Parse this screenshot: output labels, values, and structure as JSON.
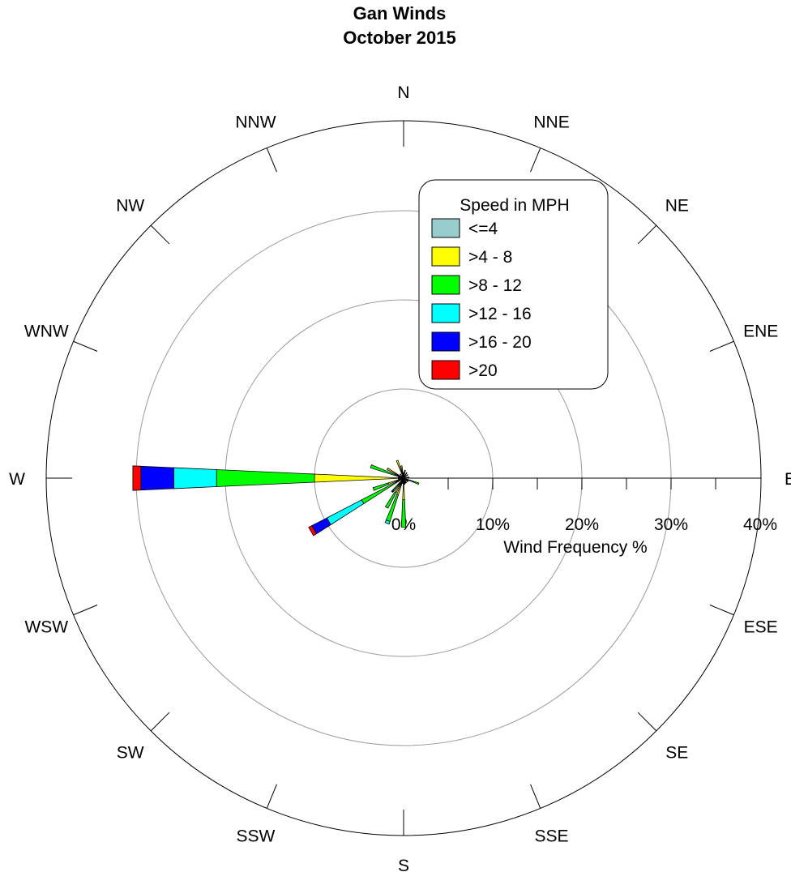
{
  "chart_data": {
    "type": "windrose",
    "title": "Gan Winds",
    "subtitle": "October 2015",
    "radial_axis_label": "Wind Frequency %",
    "radial_ticks": [
      "0%",
      "10%",
      "20%",
      "30%",
      "40%"
    ],
    "radial_range": [
      0,
      40
    ],
    "grid": true,
    "directions": [
      "N",
      "NNE",
      "NE",
      "ENE",
      "E",
      "ESE",
      "SE",
      "SSE",
      "S",
      "SSW",
      "SW",
      "WSW",
      "W",
      "WNW",
      "NW",
      "NNW"
    ],
    "legend": {
      "title": "Speed in MPH",
      "position": "upper-right",
      "bins": [
        {
          "label": "<=4",
          "color": "#99cccc"
        },
        {
          "label": ">4 - 8",
          "color": "#ffff00"
        },
        {
          "label": ">8 - 12",
          "color": "#00ff00"
        },
        {
          "label": ">12 - 16",
          "color": "#00ffff"
        },
        {
          "label": ">16 - 20",
          "color": "#0000ff"
        },
        {
          "label": ">20",
          "color": "#ff0000"
        }
      ]
    },
    "series": [
      {
        "direction_deg": 0,
        "values": [
          0.0,
          0.6,
          0.0,
          0.0,
          0.0,
          0.0
        ]
      },
      {
        "direction_deg": 10,
        "values": [
          0.0,
          0.9,
          0.0,
          0.0,
          0.0,
          0.0
        ]
      },
      {
        "direction_deg": 30,
        "values": [
          0.0,
          0.7,
          0.0,
          0.0,
          0.0,
          0.0
        ]
      },
      {
        "direction_deg": 50,
        "values": [
          0.0,
          0.6,
          0.0,
          0.0,
          0.0,
          0.0
        ]
      },
      {
        "direction_deg": 80,
        "values": [
          0.0,
          0.6,
          0.0,
          0.0,
          0.0,
          0.0
        ]
      },
      {
        "direction_deg": 110,
        "values": [
          0.0,
          1.1,
          0.7,
          0.0,
          0.0,
          0.0
        ]
      },
      {
        "direction_deg": 120,
        "values": [
          0.0,
          0.6,
          0.0,
          0.0,
          0.0,
          0.0
        ]
      },
      {
        "direction_deg": 130,
        "values": [
          0.0,
          0.6,
          0.0,
          0.0,
          0.0,
          0.0
        ]
      },
      {
        "direction_deg": 150,
        "values": [
          0.0,
          0.6,
          0.0,
          0.0,
          0.0,
          0.0
        ]
      },
      {
        "direction_deg": 160,
        "values": [
          0.0,
          0.6,
          0.0,
          0.0,
          0.0,
          0.0
        ]
      },
      {
        "direction_deg": 170,
        "values": [
          0.0,
          0.7,
          0.0,
          0.0,
          0.0,
          0.0
        ]
      },
      {
        "direction_deg": 180,
        "values": [
          0.0,
          2.4,
          3.1,
          0.0,
          0.0,
          0.0
        ]
      },
      {
        "direction_deg": 190,
        "values": [
          0.0,
          0.6,
          0.0,
          0.0,
          0.0,
          0.0
        ]
      },
      {
        "direction_deg": 200,
        "values": [
          0.0,
          2.0,
          3.1,
          0.3,
          0.0,
          0.0
        ]
      },
      {
        "direction_deg": 210,
        "values": [
          0.0,
          1.8,
          2.0,
          0.0,
          0.0,
          0.0
        ]
      },
      {
        "direction_deg": 220,
        "values": [
          0.0,
          0.7,
          0.8,
          0.2,
          0.2,
          0.1
        ]
      },
      {
        "direction_deg": 230,
        "values": [
          0.0,
          0.3,
          0.0,
          0.0,
          0.0,
          0.0
        ]
      },
      {
        "direction_deg": 240,
        "values": [
          0.0,
          1.0,
          4.3,
          4.4,
          1.9,
          0.4
        ]
      },
      {
        "direction_deg": 250,
        "values": [
          0.0,
          1.8,
          1.8,
          0.0,
          0.0,
          0.0
        ]
      },
      {
        "direction_deg": 260,
        "values": [
          0.0,
          0.6,
          0.0,
          0.0,
          0.0,
          0.0
        ]
      },
      {
        "direction_deg": 270,
        "values": [
          0.0,
          10.0,
          11.0,
          4.8,
          3.7,
          0.9
        ]
      },
      {
        "direction_deg": 280,
        "values": [
          0.0,
          0.6,
          0.0,
          0.0,
          0.0,
          0.0
        ]
      },
      {
        "direction_deg": 290,
        "values": [
          0.0,
          1.0,
          2.9,
          0.0,
          0.0,
          0.0
        ]
      },
      {
        "direction_deg": 300,
        "values": [
          0.0,
          2.1,
          0.0,
          0.0,
          0.0,
          0.0
        ]
      },
      {
        "direction_deg": 320,
        "values": [
          0.0,
          0.6,
          0.0,
          0.0,
          0.0,
          0.0
        ]
      },
      {
        "direction_deg": 340,
        "values": [
          0.0,
          2.1,
          0.0,
          0.0,
          0.0,
          0.0
        ]
      },
      {
        "direction_deg": 350,
        "values": [
          0.0,
          1.4,
          0.0,
          0.0,
          0.0,
          0.0
        ]
      }
    ]
  }
}
